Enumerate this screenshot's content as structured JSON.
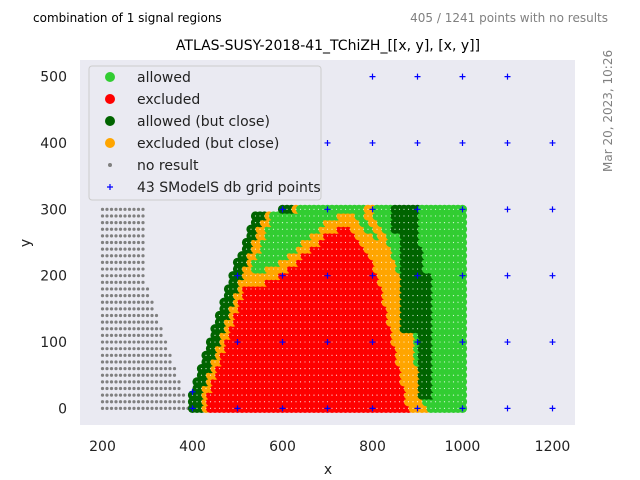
{
  "header": {
    "left_note": "combination of 1 signal regions",
    "right_note": "405 / 1241 points with no results",
    "timestamp": "Mar 20, 2023, 10:26"
  },
  "chart_data": {
    "type": "scatter",
    "title": "ATLAS-SUSY-2018-41_TChiZH_[[x, y], [x, y]]",
    "xlabel": "x",
    "ylabel": "y",
    "xlim": [
      150,
      1250
    ],
    "ylim": [
      -25,
      525
    ],
    "xticks": [
      200,
      400,
      600,
      800,
      1000,
      1200
    ],
    "yticks": [
      0,
      100,
      200,
      300,
      400,
      500
    ],
    "grid": false,
    "background": "#eaeaf2",
    "legend_position": "top-left",
    "colors": {
      "allowed": "#32cd32",
      "excluded": "#ff0000",
      "allowed_close": "#006400",
      "excluded_close": "#ffa500",
      "no_result": "#808080",
      "db_grid": "#0000ff"
    },
    "legend": [
      {
        "key": "allowed",
        "label": "allowed",
        "marker": "dot"
      },
      {
        "key": "excluded",
        "label": "excluded",
        "marker": "dot"
      },
      {
        "key": "allowed_close",
        "label": "allowed (but close)",
        "marker": "dot"
      },
      {
        "key": "excluded_close",
        "label": "excluded (but close)",
        "marker": "dot"
      },
      {
        "key": "no_result",
        "label": "no result",
        "marker": "small"
      },
      {
        "key": "db_grid",
        "label": "43 SModelS db grid points",
        "marker": "plus"
      }
    ],
    "scan_grid": {
      "x_range": [
        200,
        1000
      ],
      "y_range": [
        0,
        300
      ],
      "step": 10
    },
    "no_result_region": {
      "x_min": 200,
      "x_max_at_y0": 390,
      "x_max_at_y200": 290,
      "x_max_at_y300": 290
    },
    "allowed_close_region": [
      {
        "y_range": [
          300,
          120
        ],
        "x_range": [
          870,
          900
        ]
      },
      {
        "y_range": [
          240,
          150
        ],
        "x_range": [
          900,
          910
        ]
      },
      {
        "y_range": [
          200,
          20
        ],
        "x_range": [
          910,
          930
        ]
      }
    ],
    "db_grid_points": [
      [
        400,
        0
      ],
      [
        500,
        0
      ],
      [
        600,
        0
      ],
      [
        700,
        0
      ],
      [
        800,
        0
      ],
      [
        900,
        0
      ],
      [
        1000,
        0
      ],
      [
        1100,
        0
      ],
      [
        1200,
        0
      ],
      [
        500,
        100
      ],
      [
        600,
        100
      ],
      [
        700,
        100
      ],
      [
        800,
        100
      ],
      [
        900,
        100
      ],
      [
        1000,
        100
      ],
      [
        1100,
        100
      ],
      [
        1200,
        100
      ],
      [
        500,
        200
      ],
      [
        600,
        200
      ],
      [
        700,
        200
      ],
      [
        800,
        200
      ],
      [
        900,
        200
      ],
      [
        1000,
        200
      ],
      [
        1100,
        200
      ],
      [
        1200,
        200
      ],
      [
        600,
        300
      ],
      [
        700,
        300
      ],
      [
        800,
        300
      ],
      [
        900,
        300
      ],
      [
        1000,
        300
      ],
      [
        1100,
        300
      ],
      [
        1200,
        300
      ],
      [
        700,
        400
      ],
      [
        800,
        400
      ],
      [
        900,
        400
      ],
      [
        1000,
        400
      ],
      [
        1100,
        400
      ],
      [
        1200,
        400
      ],
      [
        800,
        500
      ],
      [
        900,
        500
      ],
      [
        1000,
        500
      ],
      [
        1100,
        500
      ],
      [
        400,
        25
      ]
    ]
  }
}
